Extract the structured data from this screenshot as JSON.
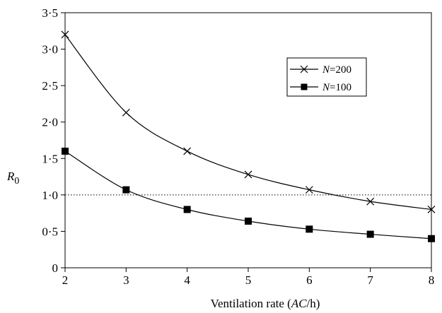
{
  "chart_data": {
    "type": "line",
    "title": "",
    "xlabel": {
      "prefix": "Ventilation rate (",
      "italic": "AC",
      "suffix": "/h)"
    },
    "ylabel": {
      "main": "R",
      "sub": "0"
    },
    "xlim": [
      2,
      8
    ],
    "ylim": [
      0,
      3.5
    ],
    "xticks": [
      {
        "value": 2,
        "label": "2"
      },
      {
        "value": 3,
        "label": "3"
      },
      {
        "value": 4,
        "label": "4"
      },
      {
        "value": 5,
        "label": "5"
      },
      {
        "value": 6,
        "label": "6"
      },
      {
        "value": 7,
        "label": "7"
      },
      {
        "value": 8,
        "label": "8"
      }
    ],
    "yticks": [
      {
        "value": 0,
        "label": "0"
      },
      {
        "value": 0.5,
        "label": "0·5"
      },
      {
        "value": 1.0,
        "label": "1·0"
      },
      {
        "value": 1.5,
        "label": "1·5"
      },
      {
        "value": 2.0,
        "label": "2·0"
      },
      {
        "value": 2.5,
        "label": "2·5"
      },
      {
        "value": 3.0,
        "label": "3·0"
      },
      {
        "value": 3.5,
        "label": "3·5"
      }
    ],
    "reference_line": {
      "y": 1.0,
      "style": "dotted"
    },
    "grid": false,
    "legend_position": "upper-right",
    "x": [
      2,
      3,
      4,
      5,
      6,
      7,
      8
    ],
    "series": [
      {
        "name_italic": "N",
        "name_rest": "=200",
        "marker": "x-icon",
        "values": [
          3.2,
          2.13,
          1.6,
          1.28,
          1.07,
          0.91,
          0.8
        ]
      },
      {
        "name_italic": "N",
        "name_rest": "=100",
        "marker": "square-icon",
        "values": [
          1.6,
          1.07,
          0.8,
          0.64,
          0.53,
          0.46,
          0.4
        ]
      }
    ]
  }
}
